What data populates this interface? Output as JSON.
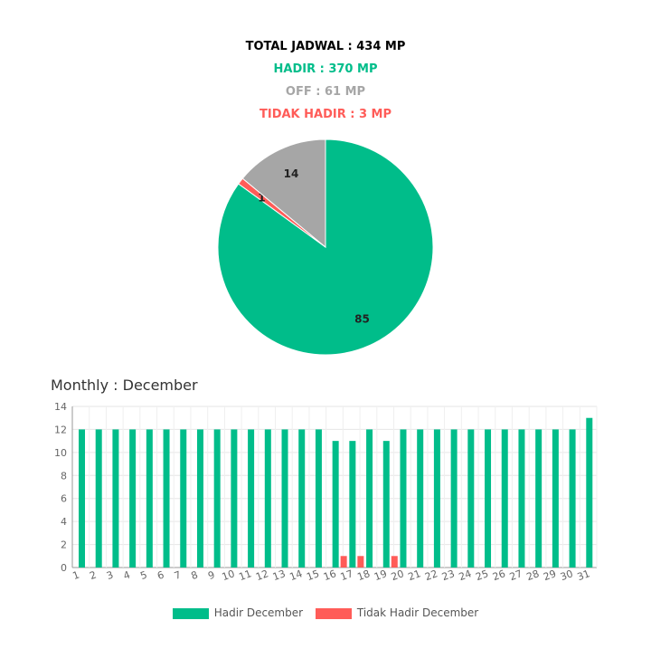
{
  "summary": {
    "total": "TOTAL JADWAL : 434 MP",
    "hadir": "HADIR : 370 MP",
    "off": "OFF : 61 MP",
    "tidak_hadir": "TIDAK HADIR : 3 MP"
  },
  "colors": {
    "hadir": "#00bd8a",
    "off": "#a6a6a6",
    "tidak_hadir": "#ff5c58",
    "total": "#000000"
  },
  "monthly": {
    "title": "Monthly : December"
  },
  "chart_data": [
    {
      "type": "pie",
      "labels": [
        "Hadir",
        "Tidak Hadir",
        "Off"
      ],
      "values": [
        85,
        1,
        14
      ],
      "data_labels": [
        "85",
        "1",
        "14"
      ]
    },
    {
      "type": "bar",
      "categories": [
        "1",
        "2",
        "3",
        "4",
        "5",
        "6",
        "7",
        "8",
        "9",
        "10",
        "11",
        "12",
        "13",
        "14",
        "15",
        "16",
        "17",
        "18",
        "19",
        "20",
        "21",
        "22",
        "23",
        "24",
        "25",
        "26",
        "27",
        "28",
        "29",
        "30",
        "31"
      ],
      "series": [
        {
          "name": "Hadir December",
          "values": [
            12,
            12,
            12,
            12,
            12,
            12,
            12,
            12,
            12,
            12,
            12,
            12,
            12,
            12,
            12,
            11,
            11,
            12,
            11,
            12,
            12,
            12,
            12,
            12,
            12,
            12,
            12,
            12,
            12,
            12,
            13
          ]
        },
        {
          "name": "Tidak Hadir December",
          "values": [
            0,
            0,
            0,
            0,
            0,
            0,
            0,
            0,
            0,
            0,
            0,
            0,
            0,
            0,
            0,
            1,
            1,
            0,
            1,
            0,
            0,
            0,
            0,
            0,
            0,
            0,
            0,
            0,
            0,
            0,
            0
          ]
        }
      ],
      "ylim": [
        0,
        14
      ],
      "yticks": [
        0,
        2,
        4,
        6,
        8,
        10,
        12,
        14
      ],
      "grid": true,
      "legend": "bottom"
    }
  ]
}
